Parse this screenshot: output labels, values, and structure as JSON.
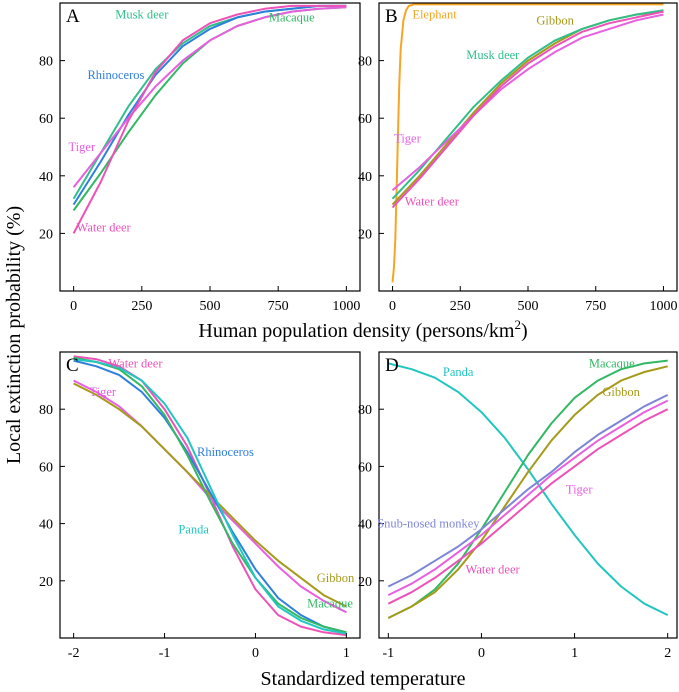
{
  "figure": {
    "ylabel": "Local extinction probability (%)",
    "xlabel_top": "Human population density (persons/km",
    "xlabel_top_sup": "2",
    "xlabel_top_end": ")",
    "xlabel_bottom": "Standardized temperature"
  },
  "chart_data": [
    {
      "type": "line",
      "panel": "A",
      "xlim": [
        -50,
        1050
      ],
      "ylim": [
        0,
        100
      ],
      "x_ticks": [
        0,
        250,
        500,
        750,
        1000
      ],
      "x_tick_labels": [
        "0",
        "250",
        "500",
        "750",
        "1000"
      ],
      "y_ticks": [
        20,
        40,
        60,
        80
      ],
      "y_tick_labels": [
        "20",
        "40",
        "60",
        "80"
      ],
      "series": [
        {
          "name": "Musk deer",
          "color": "#2fbf8a",
          "label_pos": [
            250,
            96
          ],
          "x": [
            0,
            100,
            200,
            300,
            400,
            500,
            600,
            700,
            800,
            900,
            1000
          ],
          "y": [
            32,
            48,
            64,
            77,
            86,
            92,
            95,
            97,
            98,
            99,
            99
          ]
        },
        {
          "name": "Macaque",
          "color": "#33b864",
          "label_pos": [
            800,
            95
          ],
          "x": [
            0,
            100,
            200,
            300,
            400,
            500,
            600,
            700,
            800,
            900,
            1000
          ],
          "y": [
            28,
            41,
            55,
            68,
            79,
            87,
            92,
            95,
            97,
            98,
            98.5
          ]
        },
        {
          "name": "Rhinoceros",
          "color": "#2f7fdc",
          "label_pos": [
            155,
            75
          ],
          "x": [
            0,
            100,
            200,
            300,
            400,
            500,
            600,
            700,
            800,
            900,
            1000
          ],
          "y": [
            30,
            45,
            61,
            75,
            85,
            91,
            95,
            97,
            98,
            99,
            99
          ]
        },
        {
          "name": "Tiger",
          "color": "#e85fe0",
          "label_pos": [
            30,
            50
          ],
          "x": [
            0,
            100,
            200,
            300,
            400,
            500,
            600,
            700,
            800,
            900,
            1000
          ],
          "y": [
            36,
            48,
            60,
            71,
            80,
            87,
            92,
            95,
            97,
            98,
            98.5
          ]
        },
        {
          "name": "Water deer",
          "color": "#ee52b8",
          "label_pos": [
            110,
            22
          ],
          "x": [
            0,
            100,
            200,
            300,
            400,
            500,
            600,
            700,
            800,
            900,
            1000
          ],
          "y": [
            20,
            38,
            59,
            76,
            87,
            93,
            96,
            98,
            99,
            99,
            99
          ]
        }
      ]
    },
    {
      "type": "line",
      "panel": "B",
      "xlim": [
        -50,
        1050
      ],
      "ylim": [
        0,
        100
      ],
      "x_ticks": [
        0,
        250,
        500,
        750,
        1000
      ],
      "x_tick_labels": [
        "0",
        "250",
        "500",
        "750",
        "1000"
      ],
      "y_ticks": [
        20,
        40,
        60,
        80
      ],
      "y_tick_labels": [
        "20",
        "40",
        "60",
        "80"
      ],
      "series": [
        {
          "name": "Elephant",
          "color": "#f5a623",
          "label_pos": [
            155,
            96
          ],
          "x": [
            0,
            5,
            10,
            15,
            20,
            25,
            30,
            40,
            50,
            60,
            80,
            100,
            500,
            1000
          ],
          "y": [
            3,
            8,
            18,
            35,
            55,
            72,
            84,
            94,
            97.5,
            99,
            99.5,
            99.5,
            99.5,
            99.5
          ]
        },
        {
          "name": "Gibbon",
          "color": "#a69a1a",
          "label_pos": [
            600,
            94
          ],
          "x": [
            0,
            100,
            200,
            300,
            400,
            500,
            600,
            700,
            800,
            900,
            1000
          ],
          "y": [
            30,
            40,
            51,
            62,
            72,
            80,
            86,
            91,
            94,
            96,
            97
          ]
        },
        {
          "name": "Musk deer",
          "color": "#2fbf8a",
          "label_pos": [
            370,
            82
          ],
          "x": [
            0,
            100,
            200,
            300,
            400,
            500,
            600,
            700,
            800,
            900,
            1000
          ],
          "y": [
            32,
            42,
            53,
            64,
            73,
            81,
            87,
            91,
            94,
            96,
            97.5
          ]
        },
        {
          "name": "Tiger",
          "color": "#e85fe0",
          "label_pos": [
            55,
            53
          ],
          "x": [
            0,
            100,
            200,
            300,
            400,
            500,
            600,
            700,
            800,
            900,
            1000
          ],
          "y": [
            35,
            43,
            52,
            61,
            70,
            77,
            83,
            88,
            91,
            94,
            96
          ]
        },
        {
          "name": "Water deer",
          "color": "#ee52b8",
          "label_pos": [
            145,
            31
          ],
          "x": [
            0,
            100,
            200,
            300,
            400,
            500,
            600,
            700,
            800,
            900,
            1000
          ],
          "y": [
            29,
            39,
            50,
            61,
            71,
            79,
            85,
            90,
            93,
            95,
            97
          ]
        }
      ]
    },
    {
      "type": "line",
      "panel": "C",
      "xlim": [
        -2.15,
        1.15
      ],
      "ylim": [
        0,
        100
      ],
      "x_ticks": [
        -2,
        -1,
        0,
        1
      ],
      "x_tick_labels": [
        "-2",
        "-1",
        "0",
        "1"
      ],
      "y_ticks": [
        20,
        40,
        60,
        80
      ],
      "y_tick_labels": [
        "20",
        "40",
        "60",
        "80"
      ],
      "series": [
        {
          "name": "Water deer",
          "color": "#ee52b8",
          "label_pos": [
            -1.32,
            96
          ],
          "x": [
            -2,
            -1.75,
            -1.5,
            -1.25,
            -1,
            -0.75,
            -0.5,
            -0.25,
            0,
            0.25,
            0.5,
            0.75,
            1
          ],
          "y": [
            98.5,
            97.5,
            95,
            90,
            80,
            67,
            50,
            32,
            17,
            8,
            4,
            2,
            1
          ]
        },
        {
          "name": "Tiger",
          "color": "#e85fe0",
          "label_pos": [
            -1.68,
            86
          ],
          "x": [
            -2,
            -1.75,
            -1.5,
            -1.25,
            -1,
            -0.75,
            -0.5,
            -0.25,
            0,
            0.25,
            0.5,
            0.75,
            1
          ],
          "y": [
            90,
            86,
            81,
            74,
            66,
            58,
            49,
            41,
            33,
            25,
            18,
            13,
            9
          ]
        },
        {
          "name": "Gibbon",
          "color": "#a69a1a",
          "label_pos": [
            0.88,
            21
          ],
          "x": [
            -2,
            -1.75,
            -1.5,
            -1.25,
            -1,
            -0.75,
            -0.5,
            -0.25,
            0,
            0.25,
            0.5,
            0.75,
            1
          ],
          "y": [
            89,
            85,
            80,
            74,
            66,
            58,
            50,
            42,
            34,
            27,
            21,
            15,
            11
          ]
        },
        {
          "name": "Rhinoceros",
          "color": "#2f7fdc",
          "label_pos": [
            -0.33,
            65
          ],
          "x": [
            -2,
            -1.75,
            -1.5,
            -1.25,
            -1,
            -0.75,
            -0.5,
            -0.25,
            0,
            0.25,
            0.5,
            0.75,
            1
          ],
          "y": [
            97,
            95,
            92,
            86,
            77,
            65,
            51,
            37,
            24,
            14,
            8,
            4,
            2
          ]
        },
        {
          "name": "Macaque",
          "color": "#33b864",
          "label_pos": [
            0.82,
            12
          ],
          "x": [
            -2,
            -1.75,
            -1.5,
            -1.25,
            -1,
            -0.75,
            -0.5,
            -0.25,
            0,
            0.25,
            0.5,
            0.75,
            1
          ],
          "y": [
            98,
            96.5,
            94,
            88,
            78,
            64,
            48,
            33,
            21,
            12,
            7,
            4,
            2
          ]
        },
        {
          "name": "Panda",
          "color": "#22c6c0",
          "label_pos": [
            -0.68,
            38
          ],
          "x": [
            -2,
            -1.75,
            -1.5,
            -1.25,
            -1,
            -0.75,
            -0.5,
            -0.25,
            0,
            0.25,
            0.5,
            0.75,
            1
          ],
          "y": [
            97.5,
            96.5,
            94.5,
            90,
            82,
            70,
            53,
            36,
            21,
            11,
            6,
            3,
            1.5
          ]
        }
      ]
    },
    {
      "type": "line",
      "panel": "D",
      "xlim": [
        -1.1,
        2.1
      ],
      "ylim": [
        0,
        100
      ],
      "x_ticks": [
        -1,
        0,
        1,
        2
      ],
      "x_tick_labels": [
        "-1",
        "0",
        "1",
        "2"
      ],
      "y_ticks": [
        20,
        40,
        60,
        80
      ],
      "y_tick_labels": [
        "20",
        "40",
        "60",
        "80"
      ],
      "series": [
        {
          "name": "Panda",
          "color": "#22c6c0",
          "label_pos": [
            -0.25,
            93
          ],
          "x": [
            -1,
            -0.75,
            -0.5,
            -0.25,
            0,
            0.25,
            0.5,
            0.75,
            1,
            1.25,
            1.5,
            1.75,
            2
          ],
          "y": [
            96,
            94,
            91,
            86,
            79,
            70,
            59,
            47,
            36,
            26,
            18,
            12,
            8
          ]
        },
        {
          "name": "Macaque",
          "color": "#33b864",
          "label_pos": [
            1.4,
            96
          ],
          "x": [
            -1,
            -0.75,
            -0.5,
            -0.25,
            0,
            0.25,
            0.5,
            0.75,
            1,
            1.25,
            1.5,
            1.75,
            2
          ],
          "y": [
            7,
            11,
            17,
            26,
            38,
            51,
            64,
            75,
            84,
            90,
            94,
            96,
            97
          ]
        },
        {
          "name": "Gibbon",
          "color": "#a69a1a",
          "label_pos": [
            1.5,
            86
          ],
          "x": [
            -1,
            -0.75,
            -0.5,
            -0.25,
            0,
            0.25,
            0.5,
            0.75,
            1,
            1.25,
            1.5,
            1.75,
            2
          ],
          "y": [
            7,
            11,
            16,
            24,
            34,
            46,
            58,
            69,
            78,
            85,
            90,
            93,
            95
          ]
        },
        {
          "name": "Tiger",
          "color": "#e85fe0",
          "label_pos": [
            1.05,
            52
          ],
          "x": [
            -1,
            -0.75,
            -0.5,
            -0.25,
            0,
            0.25,
            0.5,
            0.75,
            1,
            1.25,
            1.5,
            1.75,
            2
          ],
          "y": [
            15,
            19,
            24,
            30,
            36,
            43,
            50,
            57,
            63,
            69,
            74,
            79,
            83
          ]
        },
        {
          "name": "Snub-nosed monkey",
          "color": "#7d86d6",
          "label_pos": [
            -0.57,
            40
          ],
          "x": [
            -1,
            -0.75,
            -0.5,
            -0.25,
            0,
            0.25,
            0.5,
            0.75,
            1,
            1.25,
            1.5,
            1.75,
            2
          ],
          "y": [
            18,
            22,
            27,
            32,
            38,
            45,
            52,
            58,
            65,
            71,
            76,
            81,
            85
          ]
        },
        {
          "name": "Water deer",
          "color": "#ee52b8",
          "label_pos": [
            0.12,
            24
          ],
          "x": [
            -1,
            -0.75,
            -0.5,
            -0.25,
            0,
            0.25,
            0.5,
            0.75,
            1,
            1.25,
            1.5,
            1.75,
            2
          ],
          "y": [
            12,
            16,
            21,
            27,
            33,
            40,
            47,
            54,
            60,
            66,
            71,
            76,
            80
          ]
        }
      ]
    }
  ]
}
